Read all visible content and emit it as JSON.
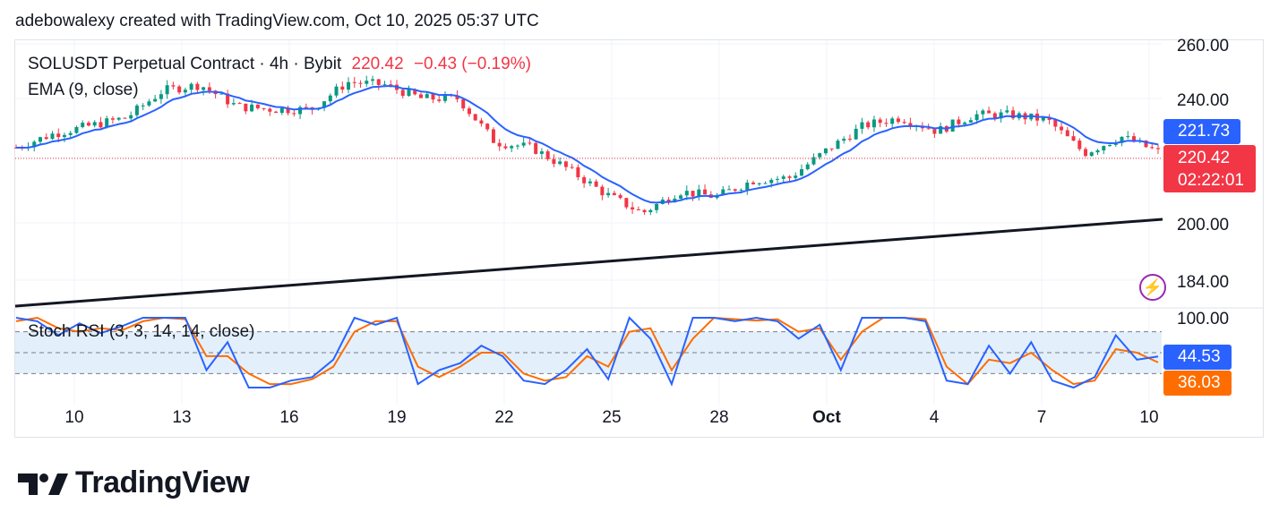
{
  "header": {
    "text": "adebowalexy created with TradingView.com, Oct 10, 2025 05:37 UTC"
  },
  "legend": {
    "symbol": "SOLUSDT Perpetual Contract · 4h · Bybit",
    "price": "220.42",
    "change": "−0.43 (−0.19%)",
    "ema": "EMA (9, close)",
    "stoch": "Stoch RSI (3, 3, 14, 14, close)"
  },
  "price_axis": {
    "ticks": [
      "260.00",
      "240.00",
      "200.00",
      "184.00"
    ]
  },
  "stoch_axis": {
    "ticks": [
      "100.00"
    ]
  },
  "price_boxes": {
    "ema": "221.73",
    "last": "220.42",
    "countdown": "02:22:01",
    "stoch_k": "44.53",
    "stoch_d": "36.03"
  },
  "colors": {
    "up": "#089981",
    "down": "#f23645",
    "ema": "#2962ff",
    "stoch_k": "#2962ff",
    "stoch_d": "#ff6d00",
    "trendline": "#131722",
    "band": "#e3f0fb",
    "bolt": "#9c27b0"
  },
  "logo": {
    "text": "TradingView"
  },
  "chart_data": [
    {
      "type": "candlestick",
      "title": "SOLUSDT Perpetual Contract · 4h · Bybit",
      "x_ticks": [
        "10",
        "13",
        "16",
        "19",
        "22",
        "25",
        "28",
        "Oct",
        "4",
        "7",
        "10"
      ],
      "y_ticks": [
        260,
        240,
        200,
        184
      ],
      "last_price": 220.42,
      "ema_9_last": 221.73,
      "approx_close_path": [
        {
          "x": "Sep 9",
          "y": 222
        },
        {
          "x": "Sep 10",
          "y": 227
        },
        {
          "x": "Sep 11",
          "y": 230
        },
        {
          "x": "Sep 12",
          "y": 233
        },
        {
          "x": "Sep 13",
          "y": 243
        },
        {
          "x": "Sep 14",
          "y": 245
        },
        {
          "x": "Sep 15",
          "y": 237
        },
        {
          "x": "Sep 16",
          "y": 236
        },
        {
          "x": "Sep 17",
          "y": 236
        },
        {
          "x": "Sep 18",
          "y": 246
        },
        {
          "x": "Sep 19",
          "y": 245
        },
        {
          "x": "Sep 20",
          "y": 240
        },
        {
          "x": "Sep 21",
          "y": 240
        },
        {
          "x": "Sep 22",
          "y": 224
        },
        {
          "x": "Sep 23",
          "y": 222
        },
        {
          "x": "Sep 24",
          "y": 214
        },
        {
          "x": "Sep 25",
          "y": 205
        },
        {
          "x": "Sep 26",
          "y": 198
        },
        {
          "x": "Sep 27",
          "y": 206
        },
        {
          "x": "Sep 28",
          "y": 204
        },
        {
          "x": "Sep 29",
          "y": 210
        },
        {
          "x": "Sep 30",
          "y": 211
        },
        {
          "x": "Oct 1",
          "y": 221
        },
        {
          "x": "Oct 2",
          "y": 230
        },
        {
          "x": "Oct 3",
          "y": 233
        },
        {
          "x": "Oct 4",
          "y": 228
        },
        {
          "x": "Oct 5",
          "y": 234
        },
        {
          "x": "Oct 6",
          "y": 234
        },
        {
          "x": "Oct 7",
          "y": 232
        },
        {
          "x": "Oct 8",
          "y": 220
        },
        {
          "x": "Oct 9",
          "y": 226
        },
        {
          "x": "Oct 10",
          "y": 220.42
        }
      ],
      "trendline": [
        {
          "x": "Sep 9",
          "y": 184
        },
        {
          "x": "Oct 10",
          "y": 201
        }
      ]
    },
    {
      "type": "line",
      "title": "Stoch RSI (3, 3, 14, 14, close)",
      "ylim": [
        0,
        100
      ],
      "bands": [
        80,
        50,
        20
      ],
      "series": [
        {
          "name": "K",
          "last": 44.53,
          "values": [
            100,
            95,
            75,
            92,
            78,
            88,
            100,
            100,
            100,
            25,
            65,
            0,
            0,
            10,
            15,
            40,
            100,
            90,
            100,
            5,
            25,
            35,
            60,
            45,
            10,
            5,
            25,
            55,
            12,
            100,
            70,
            5,
            100,
            100,
            95,
            100,
            95,
            70,
            90,
            25,
            100,
            100,
            100,
            95,
            10,
            5,
            60,
            20,
            65,
            10,
            0,
            15,
            75,
            40,
            44.53
          ]
        },
        {
          "name": "D",
          "last": 36.03,
          "values": [
            95,
            100,
            85,
            80,
            85,
            82,
            95,
            100,
            98,
            45,
            45,
            20,
            5,
            5,
            12,
            30,
            80,
            95,
            95,
            30,
            15,
            30,
            50,
            50,
            20,
            10,
            15,
            45,
            30,
            80,
            85,
            25,
            70,
            100,
            98,
            96,
            98,
            80,
            85,
            40,
            80,
            100,
            100,
            98,
            30,
            5,
            40,
            35,
            50,
            25,
            5,
            10,
            55,
            50,
            36.03
          ]
        }
      ]
    }
  ]
}
